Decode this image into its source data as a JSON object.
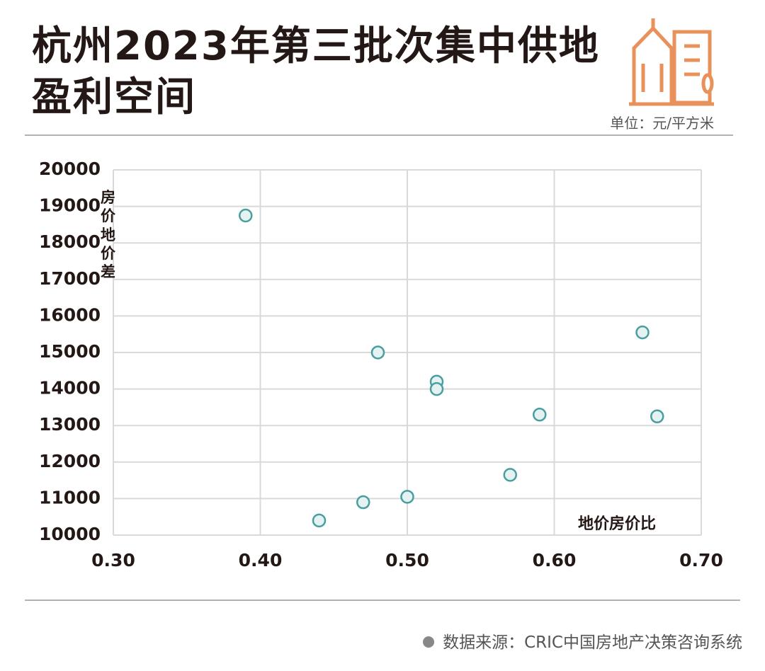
{
  "chart_data": {
    "type": "scatter",
    "title": "杭州2023年第三批次集中供地盈利空间",
    "unit": "单位：元/平方米",
    "y_label": "房价地价差",
    "x_label": "地价房价比",
    "source": "数据来源：CRIC中国房地产决策咨询系统",
    "x": [
      0.39,
      0.48,
      0.52,
      0.52,
      0.66,
      0.59,
      0.67,
      0.57,
      0.5,
      0.47,
      0.44
    ],
    "y": [
      18750,
      15000,
      14200,
      14000,
      15550,
      13300,
      13250,
      11650,
      11050,
      10900,
      10400
    ],
    "color": "#4a9ea0",
    "xlim": [
      0.3,
      0.7
    ],
    "xticks": [
      {
        "value": 0.3,
        "label": "0.30"
      },
      {
        "value": 0.4,
        "label": "0.40"
      },
      {
        "value": 0.5,
        "label": "0.50"
      },
      {
        "value": 0.6,
        "label": "0.60"
      },
      {
        "value": 0.7,
        "label": "0.70"
      }
    ],
    "ylim": [
      10000,
      20000
    ],
    "yticks": [
      10000,
      11000,
      12000,
      13000,
      14000,
      15000,
      16000,
      17000,
      18000,
      19000,
      20000
    ],
    "grid": true
  }
}
